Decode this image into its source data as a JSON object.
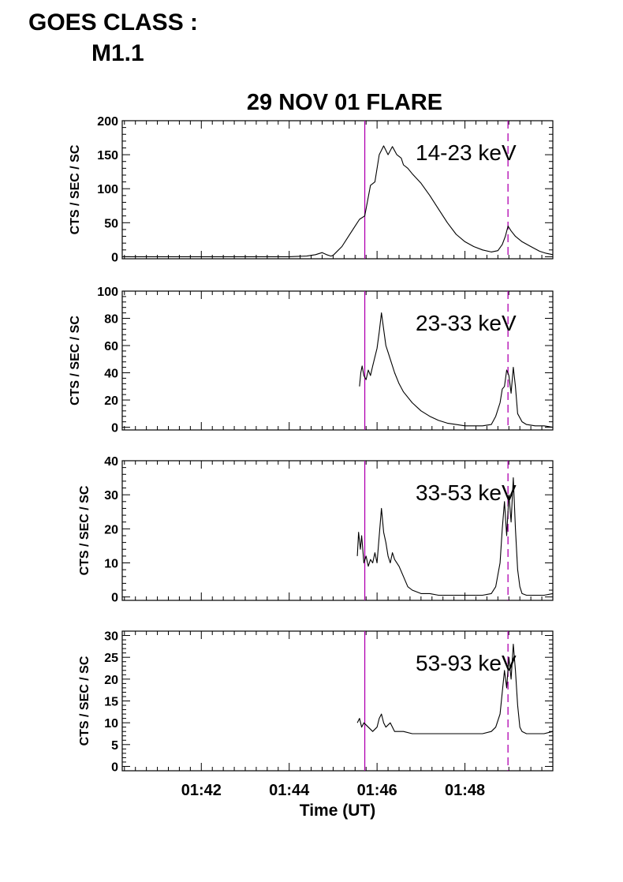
{
  "goes": {
    "label": "GOES CLASS :",
    "class": "M1.1"
  },
  "chart_data": {
    "type": "line",
    "title": "29 NOV 01 FLARE",
    "xlabel": "Time (UT)",
    "x_unit": "minutes after 01:40 UT",
    "xlim": [
      0.2,
      10.0
    ],
    "x_ticks": [
      {
        "value": 2,
        "label": "01:42"
      },
      {
        "value": 4,
        "label": "01:44"
      },
      {
        "value": 6,
        "label": "01:46"
      },
      {
        "value": 8,
        "label": "01:48"
      }
    ],
    "markers": [
      {
        "style": "solid",
        "x": 5.72,
        "color": "#b000b0"
      },
      {
        "style": "dashed",
        "x": 8.98,
        "color": "#b000b0"
      }
    ],
    "colors": {
      "line": "#000000",
      "marker": "#b000b0"
    },
    "panels": [
      {
        "band": "14-23 keV",
        "ylabel": "CTS / SEC / SC",
        "ylim": [
          -3,
          200
        ],
        "yticks": [
          0,
          50,
          100,
          150,
          200
        ],
        "series": {
          "x": [
            0.2,
            2.0,
            4.0,
            4.4,
            4.6,
            4.75,
            4.85,
            4.95,
            5.0,
            5.2,
            5.35,
            5.5,
            5.6,
            5.72,
            5.85,
            5.95,
            6.05,
            6.15,
            6.25,
            6.35,
            6.45,
            6.55,
            6.6,
            6.7,
            6.8,
            6.9,
            7.0,
            7.2,
            7.4,
            7.6,
            7.8,
            8.0,
            8.2,
            8.4,
            8.6,
            8.75,
            8.85,
            8.92,
            8.98,
            9.05,
            9.15,
            9.3,
            9.5,
            9.7,
            9.85,
            10.0
          ],
          "y": [
            0,
            0,
            0,
            1,
            3,
            6,
            3,
            1,
            2,
            15,
            30,
            45,
            55,
            60,
            105,
            110,
            150,
            163,
            150,
            162,
            150,
            145,
            135,
            130,
            122,
            115,
            108,
            90,
            70,
            50,
            33,
            22,
            15,
            10,
            7,
            9,
            18,
            30,
            45,
            38,
            30,
            22,
            15,
            8,
            5,
            3
          ]
        }
      },
      {
        "band": "23-33 keV",
        "ylabel": "CTS / SEC / SC",
        "ylim": [
          -2,
          100
        ],
        "yticks": [
          0,
          20,
          40,
          60,
          80,
          100
        ],
        "series": {
          "x": [
            5.6,
            5.63,
            5.66,
            5.7,
            5.75,
            5.8,
            5.85,
            5.9,
            6.0,
            6.05,
            6.1,
            6.15,
            6.2,
            6.25,
            6.3,
            6.4,
            6.5,
            6.6,
            6.8,
            7.0,
            7.2,
            7.4,
            7.6,
            7.8,
            8.0,
            8.2,
            8.4,
            8.6,
            8.7,
            8.8,
            8.85,
            8.9,
            8.95,
            9.0,
            9.05,
            9.1,
            9.15,
            9.2,
            9.3,
            9.4,
            9.6,
            9.8,
            10.0
          ],
          "y": [
            30,
            40,
            45,
            38,
            35,
            42,
            38,
            45,
            58,
            70,
            84,
            72,
            60,
            55,
            50,
            40,
            32,
            26,
            18,
            12,
            8,
            5,
            3,
            2,
            1,
            1,
            1,
            2,
            8,
            18,
            28,
            30,
            42,
            38,
            25,
            44,
            30,
            10,
            4,
            2,
            1,
            1,
            0
          ]
        }
      },
      {
        "band": "33-53 keV",
        "ylabel": "CTS / SEC / SC",
        "ylim": [
          -1,
          40
        ],
        "yticks": [
          0,
          10,
          20,
          30,
          40
        ],
        "series": {
          "x": [
            5.55,
            5.58,
            5.62,
            5.65,
            5.7,
            5.75,
            5.8,
            5.85,
            5.9,
            5.95,
            6.0,
            6.05,
            6.1,
            6.15,
            6.2,
            6.25,
            6.3,
            6.35,
            6.4,
            6.5,
            6.6,
            6.7,
            6.8,
            7.0,
            7.2,
            7.4,
            7.6,
            7.8,
            8.0,
            8.2,
            8.4,
            8.6,
            8.7,
            8.8,
            8.85,
            8.9,
            8.95,
            9.0,
            9.05,
            9.1,
            9.15,
            9.2,
            9.25,
            9.3,
            9.4,
            9.6,
            9.8,
            10.0
          ],
          "y": [
            12,
            19,
            14,
            18,
            10,
            12,
            9,
            11,
            10,
            13,
            10,
            18,
            26,
            19,
            16,
            12,
            10,
            13,
            11,
            9,
            6,
            3,
            2,
            1,
            1,
            0.5,
            0.5,
            0.5,
            0.5,
            0.5,
            0.5,
            1,
            3,
            10,
            20,
            28,
            18,
            30,
            22,
            35,
            20,
            8,
            3,
            1,
            0.5,
            0.5,
            0.5,
            1
          ]
        }
      },
      {
        "band": "53-93 keV",
        "ylabel": "CTS / SEC / SC",
        "ylim": [
          -1,
          31
        ],
        "yticks": [
          0,
          5,
          10,
          15,
          20,
          25,
          30
        ],
        "series": {
          "x": [
            5.55,
            5.6,
            5.65,
            5.7,
            5.8,
            5.9,
            6.0,
            6.05,
            6.1,
            6.15,
            6.2,
            6.3,
            6.4,
            6.6,
            6.8,
            7.0,
            7.2,
            7.4,
            7.6,
            7.8,
            8.0,
            8.2,
            8.4,
            8.6,
            8.7,
            8.8,
            8.85,
            8.9,
            8.95,
            9.0,
            9.05,
            9.1,
            9.15,
            9.2,
            9.25,
            9.3,
            9.4,
            9.6,
            9.8,
            10.0
          ],
          "y": [
            10,
            11,
            9,
            10,
            9,
            8,
            9,
            11,
            12,
            10,
            9,
            10,
            8,
            8,
            7.5,
            7.5,
            7.5,
            7.5,
            7.5,
            7.5,
            7.5,
            7.5,
            7.5,
            8,
            9,
            12,
            17,
            22,
            18,
            25,
            20,
            28,
            22,
            14,
            9,
            8,
            7.5,
            7.5,
            7.5,
            8
          ]
        }
      }
    ]
  }
}
